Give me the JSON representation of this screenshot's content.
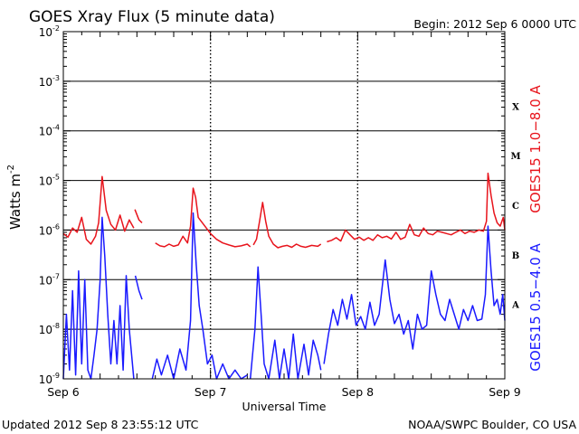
{
  "header": {
    "title": "GOES Xray Flux (5 minute data)",
    "begin": "Begin:  2012 Sep 6 0000 UTC"
  },
  "footer": {
    "updated": "Updated 2012 Sep  8 23:55:12 UTC",
    "source": "NOAA/SWPC Boulder, CO USA"
  },
  "colors": {
    "long_channel": "#e8141c",
    "short_channel": "#1a1aff",
    "threshold": "#000000",
    "background": "#ffffff"
  },
  "chart_data": {
    "type": "line",
    "title": "GOES Xray Flux (5 minute data)",
    "xlabel": "Universal Time",
    "ylabel": "Watts m",
    "ylabel_superscript": "-2",
    "y_scale": "log",
    "ylim": [
      1e-09,
      0.01
    ],
    "xlim": [
      "2012-09-06",
      "2012-09-09"
    ],
    "x_ticks": [
      "Sep 6",
      "Sep 7",
      "Sep 8",
      "Sep 9"
    ],
    "y_ticks": [
      {
        "base": "10",
        "exp": "-9"
      },
      {
        "base": "10",
        "exp": "-8"
      },
      {
        "base": "10",
        "exp": "-7"
      },
      {
        "base": "10",
        "exp": "-6"
      },
      {
        "base": "10",
        "exp": "-5"
      },
      {
        "base": "10",
        "exp": "-4"
      },
      {
        "base": "10",
        "exp": "-3"
      },
      {
        "base": "10",
        "exp": "-2"
      }
    ],
    "flare_classes": [
      {
        "label": "A",
        "value": 1e-08
      },
      {
        "label": "B",
        "value": 1e-07
      },
      {
        "label": "C",
        "value": 1e-06
      },
      {
        "label": "M",
        "value": 1e-05
      },
      {
        "label": "X",
        "value": 0.0001
      }
    ],
    "threshold_lines": [
      1e-08,
      1e-07,
      1e-06,
      1e-05,
      0.0001,
      0.001
    ],
    "legend_placement": "right",
    "series": [
      {
        "name": "GOES15 1.0−8.0 A",
        "color": "#e8141c",
        "segments": [
          [
            [
              "2012-09-06T00:00",
              8.5e-07
            ],
            [
              "2012-09-06T00:45",
              7.2e-07
            ],
            [
              "2012-09-06T01:30",
              1.1e-06
            ],
            [
              "2012-09-06T02:15",
              9e-07
            ],
            [
              "2012-09-06T03:00",
              1.8e-06
            ],
            [
              "2012-09-06T03:45",
              6.5e-07
            ],
            [
              "2012-09-06T04:30",
              5.2e-07
            ],
            [
              "2012-09-06T05:15",
              7.5e-07
            ],
            [
              "2012-09-06T05:45",
              1.4e-06
            ],
            [
              "2012-09-06T06:20",
              1.2e-05
            ],
            [
              "2012-09-06T07:00",
              2.5e-06
            ],
            [
              "2012-09-06T07:45",
              1.3e-06
            ],
            [
              "2012-09-06T08:30",
              1e-06
            ],
            [
              "2012-09-06T09:15",
              2e-06
            ],
            [
              "2012-09-06T10:00",
              9.5e-07
            ],
            [
              "2012-09-06T10:45",
              1.6e-06
            ],
            [
              "2012-09-06T11:30",
              1.1e-06
            ]
          ],
          [
            [
              "2012-09-06T11:40",
              2.6e-06
            ],
            [
              "2012-09-06T12:20",
              1.6e-06
            ],
            [
              "2012-09-06T12:50",
              1.4e-06
            ]
          ],
          [
            [
              "2012-09-06T15:00",
              5.5e-07
            ],
            [
              "2012-09-06T15:45",
              4.8e-07
            ],
            [
              "2012-09-06T16:30",
              4.6e-07
            ],
            [
              "2012-09-06T17:15",
              5.2e-07
            ],
            [
              "2012-09-06T18:00",
              4.7e-07
            ],
            [
              "2012-09-06T18:45",
              5e-07
            ],
            [
              "2012-09-06T19:30",
              7.5e-07
            ],
            [
              "2012-09-06T20:15",
              5.5e-07
            ],
            [
              "2012-09-06T20:45",
              1.2e-06
            ],
            [
              "2012-09-06T21:10",
              7e-06
            ],
            [
              "2012-09-06T21:35",
              4.5e-06
            ],
            [
              "2012-09-06T22:00",
              1.8e-06
            ],
            [
              "2012-09-07T00:00",
              8.5e-07
            ],
            [
              "2012-09-07T01:00",
              6.5e-07
            ],
            [
              "2012-09-07T02:00",
              5.5e-07
            ],
            [
              "2012-09-07T03:00",
              5e-07
            ],
            [
              "2012-09-07T04:00",
              4.6e-07
            ],
            [
              "2012-09-07T05:00",
              4.8e-07
            ],
            [
              "2012-09-07T06:00",
              5.2e-07
            ],
            [
              "2012-09-07T06:30",
              4.6e-07
            ]
          ],
          [
            [
              "2012-09-07T07:00",
              5e-07
            ],
            [
              "2012-09-07T07:30",
              6.5e-07
            ],
            [
              "2012-09-07T08:00",
              1.5e-06
            ],
            [
              "2012-09-07T08:30",
              3.6e-06
            ],
            [
              "2012-09-07T09:00",
              1.5e-06
            ],
            [
              "2012-09-07T09:30",
              7.5e-07
            ],
            [
              "2012-09-07T10:15",
              5.2e-07
            ],
            [
              "2012-09-07T11:00",
              4.4e-07
            ],
            [
              "2012-09-07T11:45",
              4.7e-07
            ],
            [
              "2012-09-07T12:30",
              4.9e-07
            ],
            [
              "2012-09-07T13:15",
              4.5e-07
            ],
            [
              "2012-09-07T14:00",
              5.2e-07
            ],
            [
              "2012-09-07T14:45",
              4.7e-07
            ],
            [
              "2012-09-07T15:30",
              4.5e-07
            ],
            [
              "2012-09-07T16:30",
              4.9e-07
            ],
            [
              "2012-09-07T17:30",
              4.7e-07
            ],
            [
              "2012-09-07T18:00",
              5.2e-07
            ]
          ],
          [
            [
              "2012-09-07T19:00",
              5.8e-07
            ],
            [
              "2012-09-07T19:45",
              6.2e-07
            ],
            [
              "2012-09-07T20:30",
              7e-07
            ],
            [
              "2012-09-07T21:15",
              6e-07
            ],
            [
              "2012-09-07T22:00",
              1e-06
            ],
            [
              "2012-09-07T22:45",
              8e-07
            ],
            [
              "2012-09-07T23:30",
              6.5e-07
            ],
            [
              "2012-09-08T00:15",
              7.2e-07
            ],
            [
              "2012-09-08T01:00",
              6.2e-07
            ],
            [
              "2012-09-08T01:45",
              7e-07
            ],
            [
              "2012-09-08T02:30",
              6.2e-07
            ],
            [
              "2012-09-08T03:15",
              8e-07
            ],
            [
              "2012-09-08T04:00",
              7e-07
            ],
            [
              "2012-09-08T04:45",
              7.5e-07
            ],
            [
              "2012-09-08T05:30",
              6.6e-07
            ],
            [
              "2012-09-08T06:15",
              9e-07
            ],
            [
              "2012-09-08T07:00",
              6.5e-07
            ],
            [
              "2012-09-08T07:45",
              7.2e-07
            ],
            [
              "2012-09-08T08:30",
              1.3e-06
            ],
            [
              "2012-09-08T09:15",
              8e-07
            ],
            [
              "2012-09-08T10:00",
              7.5e-07
            ],
            [
              "2012-09-08T10:45",
              1.1e-06
            ],
            [
              "2012-09-08T11:30",
              8.5e-07
            ],
            [
              "2012-09-08T12:15",
              8e-07
            ],
            [
              "2012-09-08T13:00",
              9.5e-07
            ],
            [
              "2012-09-08T13:45",
              9e-07
            ],
            [
              "2012-09-08T14:30",
              8.5e-07
            ],
            [
              "2012-09-08T15:15",
              8e-07
            ],
            [
              "2012-09-08T16:00",
              9e-07
            ],
            [
              "2012-09-08T16:45",
              1e-06
            ],
            [
              "2012-09-08T17:30",
              8.5e-07
            ],
            [
              "2012-09-08T18:15",
              9.5e-07
            ],
            [
              "2012-09-08T19:00",
              9e-07
            ],
            [
              "2012-09-08T19:45",
              1e-06
            ],
            [
              "2012-09-08T20:30",
              9.5e-07
            ],
            [
              "2012-09-08T21:00",
              1.5e-06
            ],
            [
              "2012-09-08T21:15",
              1.4e-05
            ],
            [
              "2012-09-08T21:45",
              5e-06
            ],
            [
              "2012-09-08T22:15",
              2.2e-06
            ],
            [
              "2012-09-08T22:45",
              1.4e-06
            ],
            [
              "2012-09-08T23:15",
              1.2e-06
            ],
            [
              "2012-09-08T23:45",
              1.8e-06
            ],
            [
              "2012-09-09T00:00",
              1e-06
            ]
          ]
        ]
      },
      {
        "name": "GOES15 0.5−4.0 A",
        "color": "#1a1aff",
        "segments": [
          [
            [
              "2012-09-06T00:00",
              1e-09
            ],
            [
              "2012-09-06T00:30",
              2e-08
            ],
            [
              "2012-09-06T01:00",
              1.5e-09
            ],
            [
              "2012-09-06T01:30",
              6e-08
            ],
            [
              "2012-09-06T02:00",
              1.2e-09
            ],
            [
              "2012-09-06T02:30",
              1.5e-07
            ],
            [
              "2012-09-06T03:00",
              2e-09
            ],
            [
              "2012-09-06T03:30",
              1e-07
            ],
            [
              "2012-09-06T04:00",
              1.5e-09
            ],
            [
              "2012-09-06T04:30",
              1e-09
            ],
            [
              "2012-09-06T05:00",
              3e-09
            ],
            [
              "2012-09-06T05:30",
              1e-08
            ],
            [
              "2012-09-06T06:00",
              1e-07
            ],
            [
              "2012-09-06T06:20",
              1.8e-06
            ],
            [
              "2012-09-06T06:45",
              3e-07
            ],
            [
              "2012-09-06T07:15",
              2e-08
            ],
            [
              "2012-09-06T07:45",
              2e-09
            ],
            [
              "2012-09-06T08:15",
              1.5e-08
            ],
            [
              "2012-09-06T08:45",
              2e-09
            ],
            [
              "2012-09-06T09:15",
              3e-08
            ],
            [
              "2012-09-06T09:45",
              1.5e-09
            ],
            [
              "2012-09-06T10:15",
              1.2e-07
            ],
            [
              "2012-09-06T10:45",
              1e-08
            ],
            [
              "2012-09-06T11:30",
              1e-09
            ]
          ],
          [
            [
              "2012-09-06T11:45",
              1.2e-07
            ],
            [
              "2012-09-06T12:20",
              6e-08
            ],
            [
              "2012-09-06T12:50",
              4e-08
            ]
          ],
          [
            [
              "2012-09-06T14:30",
              1e-09
            ],
            [
              "2012-09-06T15:15",
              2.5e-09
            ],
            [
              "2012-09-06T16:00",
              1.2e-09
            ],
            [
              "2012-09-06T17:00",
              3e-09
            ],
            [
              "2012-09-06T18:00",
              1e-09
            ],
            [
              "2012-09-06T19:00",
              4e-09
            ],
            [
              "2012-09-06T20:00",
              1.5e-09
            ],
            [
              "2012-09-06T20:45",
              1.5e-08
            ],
            [
              "2012-09-06T21:10",
              2.2e-06
            ],
            [
              "2012-09-06T21:40",
              2e-07
            ],
            [
              "2012-09-06T22:10",
              3e-08
            ],
            [
              "2012-09-06T22:45",
              1e-08
            ],
            [
              "2012-09-06T23:30",
              2e-09
            ],
            [
              "2012-09-07T00:15",
              3e-09
            ],
            [
              "2012-09-07T01:00",
              1e-09
            ],
            [
              "2012-09-07T02:00",
              2e-09
            ],
            [
              "2012-09-07T03:00",
              1e-09
            ],
            [
              "2012-09-07T04:00",
              1.5e-09
            ],
            [
              "2012-09-07T05:00",
              1e-09
            ],
            [
              "2012-09-07T06:00",
              1.2e-09
            ]
          ],
          [
            [
              "2012-09-07T06:30",
              1e-09
            ],
            [
              "2012-09-07T07:15",
              1e-08
            ],
            [
              "2012-09-07T07:45",
              1.8e-07
            ],
            [
              "2012-09-07T08:15",
              2e-08
            ],
            [
              "2012-09-07T08:45",
              2e-09
            ],
            [
              "2012-09-07T09:30",
              1e-09
            ],
            [
              "2012-09-07T10:30",
              6e-09
            ],
            [
              "2012-09-07T11:15",
              1e-09
            ],
            [
              "2012-09-07T12:00",
              4e-09
            ],
            [
              "2012-09-07T12:45",
              1e-09
            ],
            [
              "2012-09-07T13:30",
              8e-09
            ],
            [
              "2012-09-07T14:15",
              1e-09
            ],
            [
              "2012-09-07T15:15",
              5e-09
            ],
            [
              "2012-09-07T16:00",
              1.2e-09
            ],
            [
              "2012-09-07T16:45",
              6e-09
            ],
            [
              "2012-09-07T17:30",
              3e-09
            ],
            [
              "2012-09-07T18:00",
              1.5e-09
            ]
          ],
          [
            [
              "2012-09-07T18:30",
              2e-09
            ],
            [
              "2012-09-07T19:15",
              8e-09
            ],
            [
              "2012-09-07T20:00",
              2.5e-08
            ],
            [
              "2012-09-07T20:45",
              1.2e-08
            ],
            [
              "2012-09-07T21:30",
              4e-08
            ],
            [
              "2012-09-07T22:15",
              1.6e-08
            ],
            [
              "2012-09-07T23:00",
              5e-08
            ],
            [
              "2012-09-07T23:45",
              1.2e-08
            ],
            [
              "2012-09-08T00:30",
              1.8e-08
            ],
            [
              "2012-09-08T01:15",
              1e-08
            ],
            [
              "2012-09-08T02:00",
              3.5e-08
            ],
            [
              "2012-09-08T02:45",
              1.2e-08
            ],
            [
              "2012-09-08T03:30",
              2e-08
            ],
            [
              "2012-09-08T04:30",
              2.5e-07
            ],
            [
              "2012-09-08T05:15",
              4e-08
            ],
            [
              "2012-09-08T06:00",
              1.3e-08
            ],
            [
              "2012-09-08T06:45",
              2e-08
            ],
            [
              "2012-09-08T07:30",
              8e-09
            ],
            [
              "2012-09-08T08:15",
              1.5e-08
            ],
            [
              "2012-09-08T09:00",
              4e-09
            ],
            [
              "2012-09-08T09:45",
              2e-08
            ],
            [
              "2012-09-08T10:30",
              1e-08
            ],
            [
              "2012-09-08T11:15",
              1.2e-08
            ],
            [
              "2012-09-08T12:00",
              1.5e-07
            ],
            [
              "2012-09-08T12:45",
              5e-08
            ],
            [
              "2012-09-08T13:30",
              2e-08
            ],
            [
              "2012-09-08T14:15",
              1.5e-08
            ],
            [
              "2012-09-08T15:00",
              4e-08
            ],
            [
              "2012-09-08T15:45",
              2e-08
            ],
            [
              "2012-09-08T16:30",
              1e-08
            ],
            [
              "2012-09-08T17:15",
              2.5e-08
            ],
            [
              "2012-09-08T18:00",
              1.5e-08
            ],
            [
              "2012-09-08T18:45",
              3e-08
            ],
            [
              "2012-09-08T19:30",
              1.5e-08
            ],
            [
              "2012-09-08T20:15",
              1.6e-08
            ],
            [
              "2012-09-08T20:50",
              5e-08
            ],
            [
              "2012-09-08T21:15",
              1.2e-06
            ],
            [
              "2012-09-08T21:45",
              1.5e-07
            ],
            [
              "2012-09-08T22:15",
              3e-08
            ],
            [
              "2012-09-08T22:45",
              4e-08
            ],
            [
              "2012-09-08T23:15",
              2e-08
            ],
            [
              "2012-09-08T23:40",
              5e-08
            ],
            [
              "2012-09-09T00:00",
              1.5e-08
            ]
          ]
        ]
      }
    ]
  }
}
